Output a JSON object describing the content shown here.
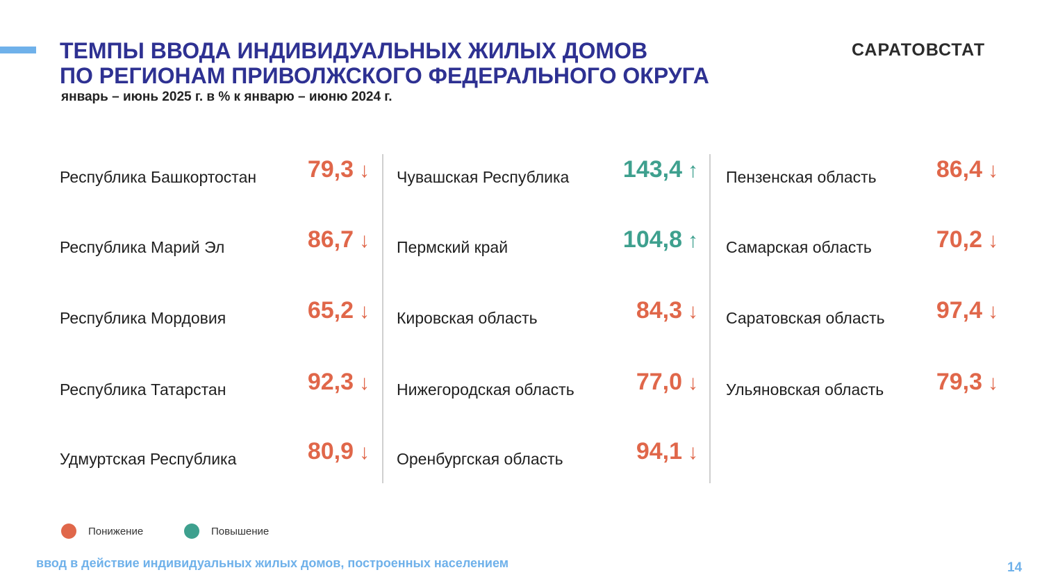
{
  "title": {
    "line1": "ТЕМПЫ ВВОДА ИНДИВИДУАЛЬНЫХ ЖИЛЫХ ДОМОВ",
    "line2": "ПО РЕГИОНАМ ПРИВОЛЖСКОГО ФЕДЕРАЛЬНОГО ОКРУГА"
  },
  "brand": "САРАТОВСТАТ",
  "subtitle": "январь – июнь 2025 г.  в % к январю – июню 2024 г.",
  "colors": {
    "title": "#2e3192",
    "decrease": "#e0674a",
    "increase": "#3ea08e",
    "accent": "#6fb1ea"
  },
  "columns": [
    [
      {
        "region": "Республика Башкортостан",
        "value": "79,3",
        "arrow": "↓",
        "trend": "down"
      },
      {
        "region": "Республика Марий Эл",
        "value": "86,7",
        "arrow": "↓",
        "trend": "down"
      },
      {
        "region": "Республика Мордовия",
        "value": "65,2",
        "arrow": "↓",
        "trend": "down"
      },
      {
        "region": "Республика Татарстан",
        "value": "92,3",
        "arrow": "↓",
        "trend": "down"
      },
      {
        "region": "Удмуртская Республика",
        "value": "80,9",
        "arrow": "↓",
        "trend": "down"
      }
    ],
    [
      {
        "region": "Чувашская Республика",
        "value": "143,4",
        "arrow": "↑",
        "trend": "up"
      },
      {
        "region": "Пермский край",
        "value": "104,8",
        "arrow": "↑",
        "trend": "up"
      },
      {
        "region": "Кировская область",
        "value": "84,3",
        "arrow": "↓",
        "trend": "down"
      },
      {
        "region": "Нижегородская область",
        "value": "77,0",
        "arrow": "↓",
        "trend": "down"
      },
      {
        "region": "Оренбургская область",
        "value": "94,1",
        "arrow": "↓",
        "trend": "down"
      }
    ],
    [
      {
        "region": "Пензенская область",
        "value": "86,4",
        "arrow": "↓",
        "trend": "down"
      },
      {
        "region": "Самарская область",
        "value": "70,2",
        "arrow": "↓",
        "trend": "down"
      },
      {
        "region": "Саратовская область",
        "value": "97,4",
        "arrow": "↓",
        "trend": "down"
      },
      {
        "region": "Ульяновская область",
        "value": "79,3",
        "arrow": "↓",
        "trend": "down"
      }
    ]
  ],
  "legend": {
    "decrease_label": "Понижение",
    "increase_label": "Повышение"
  },
  "footnote": "ввод в действие индивидуальных жилых домов, построенных населением",
  "page_number": "14"
}
